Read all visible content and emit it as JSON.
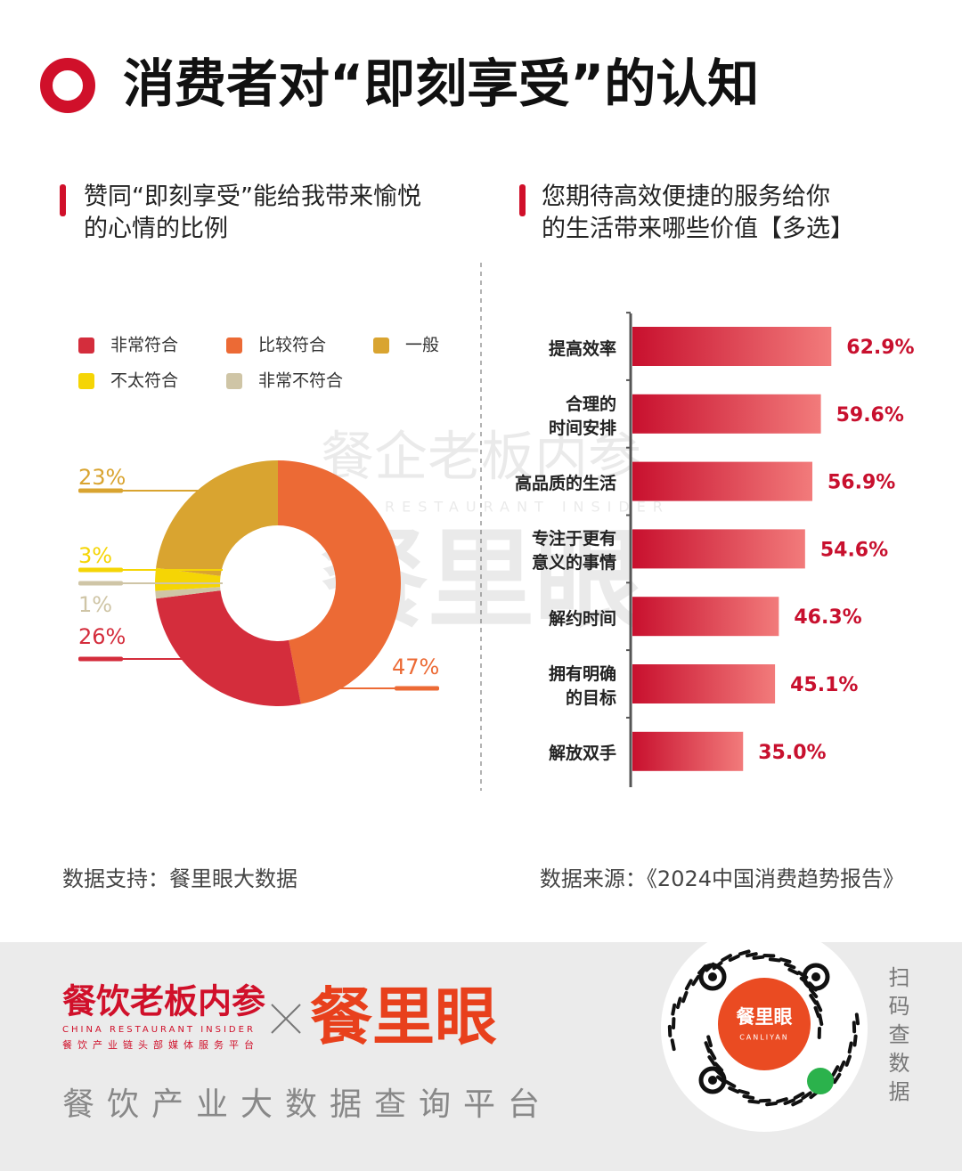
{
  "header": {
    "title": "消费者对“即刻享受”的认知"
  },
  "chart_data": [
    {
      "type": "pie",
      "title": [
        "赞同“即刻享受”能给我带来愉悦",
        "的心情的比例"
      ],
      "categories": [
        "非常符合",
        "比较符合",
        "一般",
        "不太符合",
        "非常不符合"
      ],
      "values": [
        26,
        47,
        23,
        3,
        1
      ],
      "value_labels": [
        "26%",
        "47%",
        "23%",
        "3%",
        "1%"
      ],
      "colors": [
        "#d42d3c",
        "#ec6a35",
        "#d9a430",
        "#f5d505",
        "#cfc5a6"
      ],
      "legend": "top"
    },
    {
      "type": "bar",
      "orientation": "horizontal",
      "title": [
        "您期待高效便捷的服务给你",
        "的生活带来哪些价值【多选】"
      ],
      "categories": [
        "提高效率",
        "合理的\n时间安排",
        "高品质的生活",
        "专注于更有\n意义的事情",
        "解约时间",
        "拥有明确\n的目标",
        "解放双手"
      ],
      "values": [
        62.9,
        59.6,
        56.9,
        54.6,
        46.3,
        45.1,
        35.0
      ],
      "value_labels": [
        "62.9%",
        "59.6%",
        "56.9%",
        "54.6%",
        "46.3%",
        "45.1%",
        "35.0%"
      ],
      "color": [
        "#c8102e",
        "#f27b7b"
      ],
      "xlim": [
        0,
        100
      ]
    }
  ],
  "watermark": {
    "brand": "餐企老板内参",
    "brand_en": "CHINA RESTAURANT INSIDER",
    "logo": "餐里眼"
  },
  "footer": {
    "support": "数据支持：餐里眼大数据",
    "source": "数据来源：《2024中国消费趋势报告》",
    "brand": "餐饮老板内参",
    "brand_en": "CHINA RESTAURANT INSIDER",
    "brand_tagline": "餐饮产业链头部媒体服务平台",
    "logo": "餐里眼",
    "slogan": "餐饮产业大数据查询平台",
    "qr_logo": "餐里眼",
    "qr_logo_en": "CANLIYAN",
    "scan": "扫码查数据"
  }
}
